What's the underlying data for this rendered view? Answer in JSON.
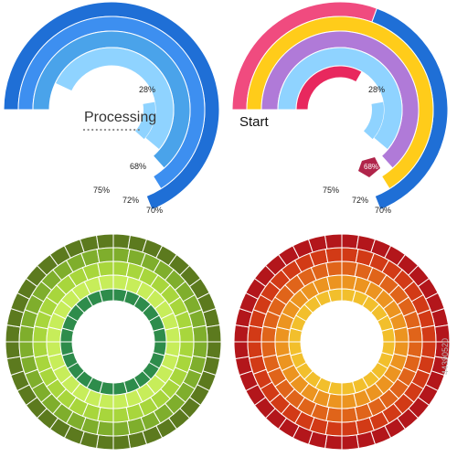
{
  "gauges": [
    {
      "id": "processing",
      "caption": "Processing",
      "colors": [
        "#1f6fd6",
        "#3d8ff0",
        "#4aa3ea",
        "#8fd3ff"
      ],
      "dot_color": "#888888",
      "labels": [
        {
          "text": "28%"
        },
        {
          "text": "68%"
        },
        {
          "text": "75%"
        },
        {
          "text": "72%"
        },
        {
          "text": "70%"
        }
      ]
    },
    {
      "id": "start",
      "caption": "Start",
      "colors": [
        "#1f6fd6",
        "#ffcc1a",
        "#b07ad8",
        "#8fd3ff",
        "#e8285e"
      ],
      "outer_ring_top_color": "#f04b7f",
      "highlight_color": "#b0244a",
      "labels": [
        {
          "text": "28%"
        },
        {
          "text": "68%"
        },
        {
          "text": "75%"
        },
        {
          "text": "72%"
        },
        {
          "text": "70%"
        }
      ]
    }
  ],
  "wheels": [
    {
      "id": "green-wheel",
      "rings": [
        "#5c7a1e",
        "#7fae2c",
        "#a8d63c",
        "#c7ed5a",
        "#2e8c4b"
      ]
    },
    {
      "id": "red-wheel",
      "rings": [
        "#b3161b",
        "#d23a16",
        "#e0641a",
        "#ec9420",
        "#f2bf2c"
      ]
    }
  ],
  "watermark": "44390520"
}
